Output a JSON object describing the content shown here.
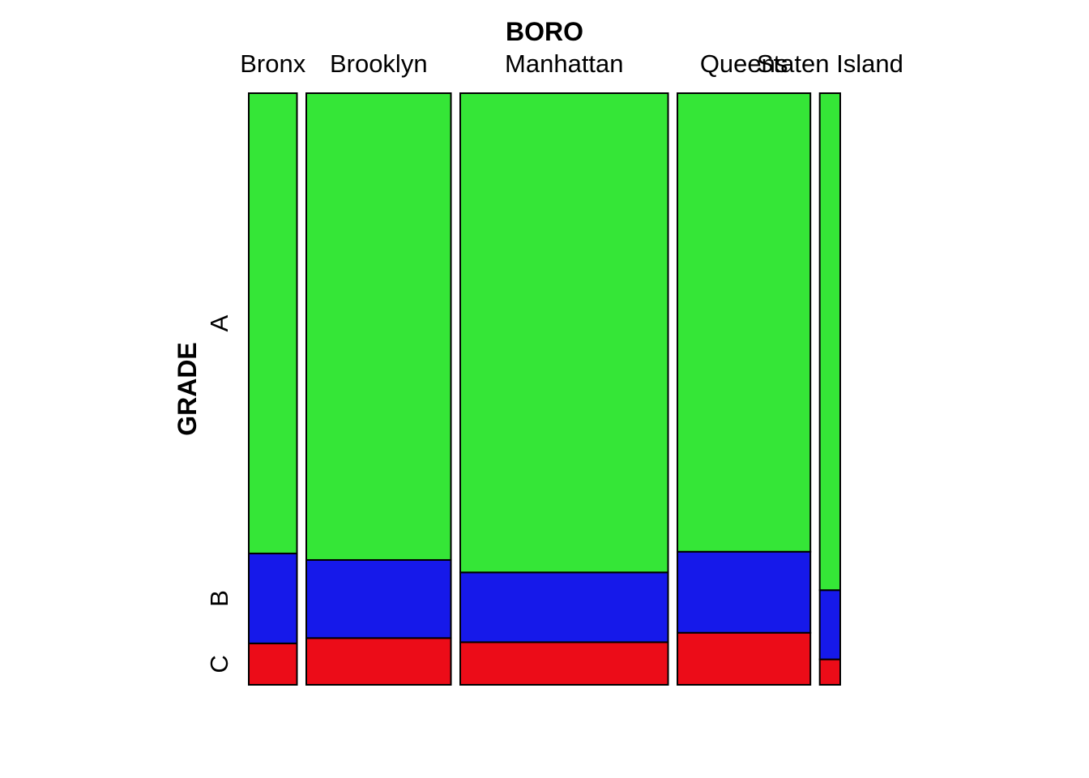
{
  "chart_data": {
    "type": "mosaic",
    "xlabel": "BORO",
    "ylabel": "GRADE",
    "categories": [
      "Bronx",
      "Brooklyn",
      "Manhattan",
      "Queens",
      "Staten Island"
    ],
    "column_share": [
      0.087,
      0.261,
      0.375,
      0.24,
      0.037
    ],
    "series": [
      {
        "name": "A",
        "color": "#35E637",
        "values": [
          0.778,
          0.789,
          0.81,
          0.775,
          0.84
        ]
      },
      {
        "name": "B",
        "color": "#1619EA",
        "values": [
          0.152,
          0.132,
          0.118,
          0.137,
          0.117
        ]
      },
      {
        "name": "C",
        "color": "#EC0C18",
        "values": [
          0.07,
          0.079,
          0.072,
          0.088,
          0.043
        ]
      }
    ],
    "grid": false,
    "legend": "none"
  }
}
